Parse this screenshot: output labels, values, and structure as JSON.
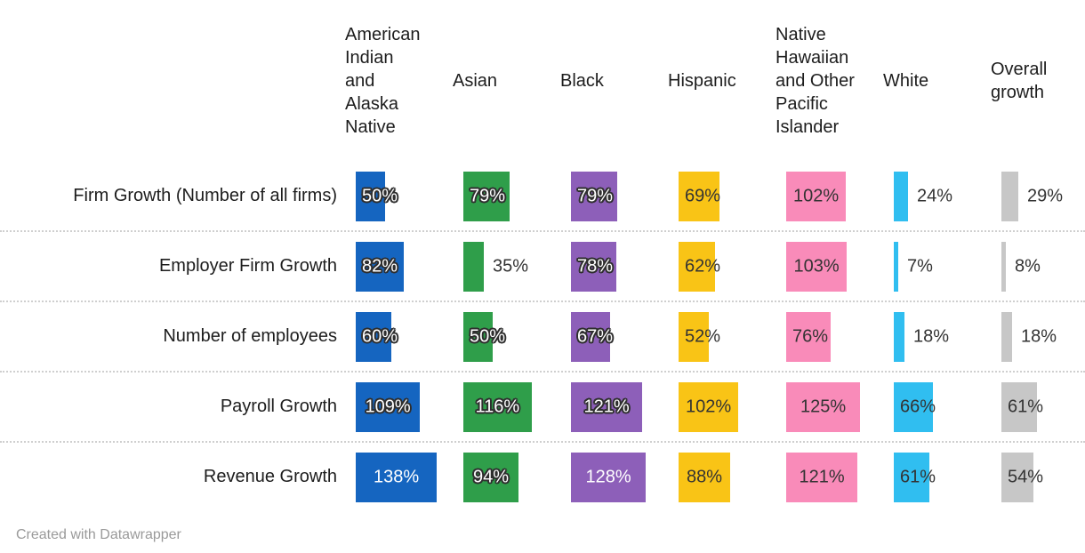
{
  "chart_data": {
    "type": "bar",
    "layout": "table of horizontal bars: rows are growth metrics, columns are race/ethnicity groups",
    "title": "",
    "value_format": "percent",
    "value_range": [
      0,
      138
    ],
    "grid": "dotted horizontal separators between rows",
    "rows": [
      "Firm Growth (Number of all firms)",
      "Employer Firm Growth",
      "Number of employees",
      "Payroll Growth",
      "Revenue Growth"
    ],
    "series": [
      {
        "name": "American Indian and Alaska Native",
        "color": "#1565C0",
        "dark_bar": true,
        "values": [
          50,
          82,
          60,
          109,
          138
        ],
        "labels": [
          "50%",
          "82%",
          "60%",
          "109%",
          "138%"
        ]
      },
      {
        "name": "Asian",
        "color": "#2F9E4A",
        "dark_bar": true,
        "values": [
          79,
          35,
          50,
          116,
          94
        ],
        "labels": [
          "79%",
          "35%",
          "50%",
          "116%",
          "94%"
        ]
      },
      {
        "name": "Black",
        "color": "#8D5FB9",
        "dark_bar": true,
        "values": [
          79,
          78,
          67,
          121,
          128
        ],
        "labels": [
          "79%",
          "78%",
          "67%",
          "121%",
          "128%"
        ]
      },
      {
        "name": "Hispanic",
        "color": "#F9C416",
        "dark_bar": false,
        "values": [
          69,
          62,
          52,
          102,
          88
        ],
        "labels": [
          "69%",
          "62%",
          "52%",
          "102%",
          "88%"
        ]
      },
      {
        "name": "Native Hawaiian and Other Pacific Islander",
        "color": "#F98BB9",
        "dark_bar": false,
        "values": [
          102,
          103,
          76,
          125,
          121
        ],
        "labels": [
          "102%",
          "103%",
          "76%",
          "125%",
          "121%"
        ]
      },
      {
        "name": "White",
        "color": "#30BEF0",
        "dark_bar": false,
        "values": [
          24,
          7,
          18,
          66,
          61
        ],
        "labels": [
          "24%",
          "7%",
          "18%",
          "66%",
          "61%"
        ]
      },
      {
        "name": "Overall growth",
        "color": "#C7C7C7",
        "dark_bar": false,
        "values": [
          29,
          8,
          18,
          61,
          54
        ],
        "labels": [
          "29%",
          "8%",
          "18%",
          "61%",
          "54%"
        ]
      }
    ]
  },
  "footer": {
    "credit": "Created with Datawrapper"
  }
}
